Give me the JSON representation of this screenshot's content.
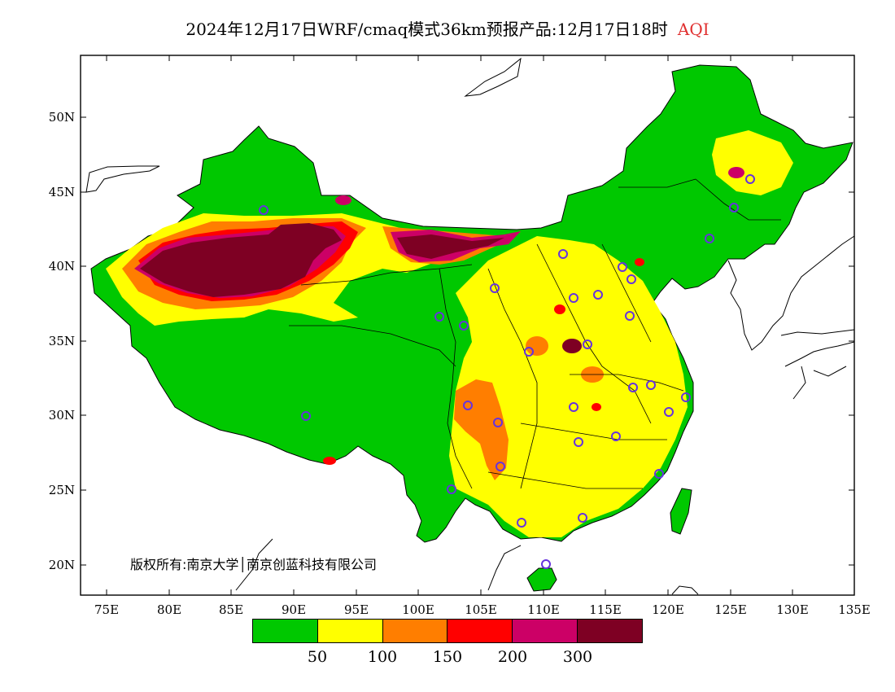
{
  "title": {
    "text": "2024年12月17日WRF/cmaq模式36km预报产品:12月17日18时",
    "variable": "AQI",
    "variable_color": "#e03030"
  },
  "axes": {
    "lat_labels": [
      "50N",
      "45N",
      "40N",
      "35N",
      "30N",
      "25N",
      "20N"
    ],
    "lon_labels": [
      "75E",
      "80E",
      "85E",
      "90E",
      "95E",
      "100E",
      "105E",
      "110E",
      "115E",
      "120E",
      "125E",
      "130E",
      "135E"
    ]
  },
  "copyright": "版权所有:南京大学│南京创蓝科技有限公司",
  "legend": {
    "colors": [
      "#00c800",
      "#ffff00",
      "#ff7e00",
      "#ff0000",
      "#cc0066",
      "#7e0023"
    ],
    "thresholds": [
      "50",
      "100",
      "150",
      "200",
      "300"
    ]
  },
  "map": {
    "projection": "lat-lon",
    "lon_range": [
      73,
      135
    ],
    "lat_range": [
      18,
      54
    ],
    "field": "AQI",
    "station_marker": "blue-purple circle",
    "station_count": 31
  }
}
